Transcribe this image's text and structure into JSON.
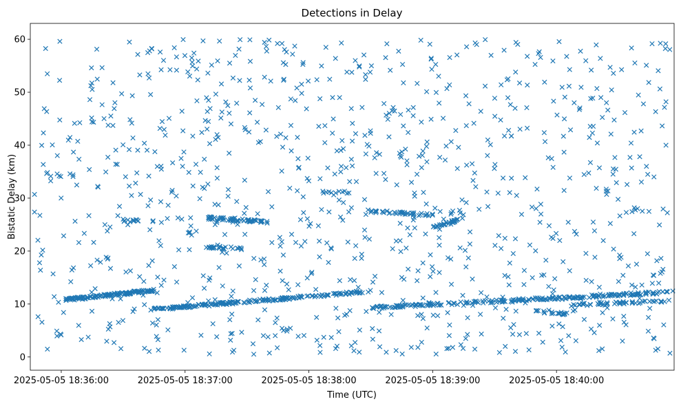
{
  "chart_data": {
    "type": "scatter",
    "title": "Detections in Delay",
    "xlabel": "Time (UTC)",
    "ylabel": "Bistatic Delay (km)",
    "marker": "x",
    "color": "#1f77b4",
    "grid": false,
    "x_range": [
      "2025-05-05 18:35:45",
      "2025-05-05 18:40:57"
    ],
    "ylim": [
      -2.5,
      63
    ],
    "x_ticks": [
      "2025-05-05 18:36:00",
      "2025-05-05 18:37:00",
      "2025-05-05 18:38:00",
      "2025-05-05 18:39:00",
      "2025-05-05 18:40:00"
    ],
    "y_ticks": [
      0,
      10,
      20,
      30,
      40,
      50,
      60
    ],
    "tracks": [
      {
        "t_start": "2025-05-05 18:36:02",
        "t_end": "2025-05-05 18:36:45",
        "y_start": 10.8,
        "y_end": 12.6,
        "count": 130
      },
      {
        "t_start": "2025-05-05 18:36:45",
        "t_end": "2025-05-05 18:38:30",
        "y_start": 9.0,
        "y_end": 12.4,
        "count": 200
      },
      {
        "t_start": "2025-05-05 18:38:30",
        "t_end": "2025-05-05 18:40:57",
        "y_start": 9.3,
        "y_end": 12.3,
        "count": 230
      },
      {
        "t_start": "2025-05-05 18:37:10",
        "t_end": "2025-05-05 18:37:40",
        "y_start": 26.3,
        "y_end": 25.5,
        "count": 60
      },
      {
        "t_start": "2025-05-05 18:37:10",
        "t_end": "2025-05-05 18:37:28",
        "y_start": 20.8,
        "y_end": 20.5,
        "count": 25
      },
      {
        "t_start": "2025-05-05 18:38:30",
        "t_end": "2025-05-05 18:39:00",
        "y_start": 27.5,
        "y_end": 26.8,
        "count": 40
      },
      {
        "t_start": "2025-05-05 18:39:00",
        "t_end": "2025-05-05 18:39:15",
        "y_start": 24.5,
        "y_end": 26.2,
        "count": 30
      },
      {
        "t_start": "2025-05-05 18:39:48",
        "t_end": "2025-05-05 18:40:05",
        "y_start": 8.6,
        "y_end": 8.2,
        "count": 20
      },
      {
        "t_start": "2025-05-05 18:40:05",
        "t_end": "2025-05-05 18:40:57",
        "y_start": 9.8,
        "y_end": 10.6,
        "count": 50
      },
      {
        "t_start": "2025-05-05 18:36:30",
        "t_end": "2025-05-05 18:36:45",
        "y_start": 25.8,
        "y_end": 25.6,
        "count": 15
      },
      {
        "t_start": "2025-05-05 18:38:05",
        "t_end": "2025-05-05 18:38:20",
        "y_start": 31.2,
        "y_end": 31.0,
        "count": 10
      }
    ],
    "scatter": {
      "t_start": "2025-05-05 18:35:47",
      "t_end": "2025-05-05 18:40:55",
      "y_min": 0.5,
      "y_max": 60,
      "count": 1000
    }
  }
}
